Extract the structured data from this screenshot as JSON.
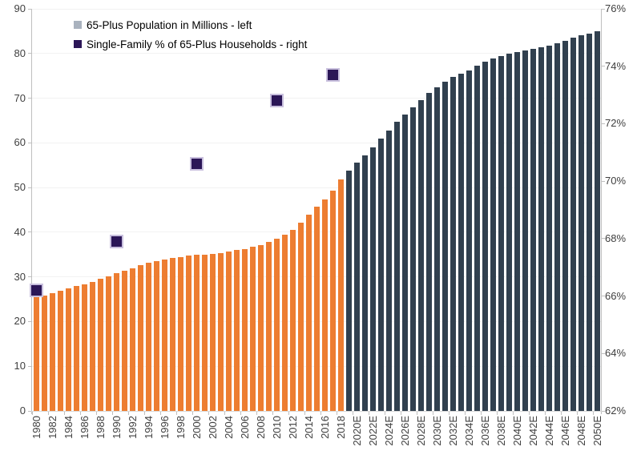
{
  "chart_data": {
    "type": "combo",
    "title": "",
    "legend": [
      {
        "label": "65-Plus Population in Millions - left",
        "marker_color": "#A9B2BE"
      },
      {
        "label": "Single-Family % of 65-Plus Households - right",
        "marker_color": "#2B1657"
      }
    ],
    "categories": [
      1980,
      1981,
      1982,
      1983,
      1984,
      1985,
      1986,
      1987,
      1988,
      1989,
      1990,
      1991,
      1992,
      1993,
      1994,
      1995,
      1996,
      1997,
      1998,
      1999,
      2000,
      2001,
      2002,
      2003,
      2004,
      2005,
      2006,
      2007,
      2008,
      2009,
      2010,
      2011,
      2012,
      2013,
      2014,
      2015,
      2016,
      2017,
      2018,
      2019,
      2020,
      2021,
      2022,
      2023,
      2024,
      2025,
      2026,
      2027,
      2028,
      2029,
      2030,
      2031,
      2032,
      2033,
      2034,
      2035,
      2036,
      2037,
      2038,
      2039,
      2040,
      2041,
      2042,
      2043,
      2044,
      2045,
      2046,
      2047,
      2048,
      2049,
      2050
    ],
    "bar_series": {
      "name": "65-Plus Population in Millions - left",
      "axis": "left",
      "estimate_start_year": 2019,
      "historical_color": "#ED7D31",
      "estimate_color": "#31404F",
      "values": [
        25.4,
        25.9,
        26.4,
        26.9,
        27.4,
        27.9,
        28.4,
        28.9,
        29.5,
        30.1,
        30.8,
        31.4,
        32.0,
        32.6,
        33.1,
        33.5,
        33.9,
        34.2,
        34.5,
        34.7,
        34.9,
        35.0,
        35.2,
        35.4,
        35.7,
        36.0,
        36.3,
        36.7,
        37.2,
        37.8,
        38.6,
        39.4,
        40.5,
        42.2,
        44.0,
        45.8,
        47.3,
        49.3,
        51.8,
        53.8,
        55.6,
        57.2,
        59.0,
        61.0,
        62.8,
        64.7,
        66.4,
        68.0,
        69.5,
        71.1,
        72.5,
        73.7,
        74.7,
        75.5,
        76.2,
        77.3,
        78.2,
        78.9,
        79.5,
        79.9,
        80.4,
        80.6,
        81.0,
        81.4,
        81.7,
        82.3,
        82.9,
        83.5,
        84.1,
        84.5,
        85.0
      ]
    },
    "scatter_series": {
      "name": "Single-Family % of 65-Plus Households - right",
      "axis": "right",
      "color": "#2B1657",
      "border_color": "#C9C0DE",
      "points": [
        {
          "year": 1980,
          "value": 66.2
        },
        {
          "year": 1990,
          "value": 67.9
        },
        {
          "year": 2000,
          "value": 70.6
        },
        {
          "year": 2010,
          "value": 72.8
        },
        {
          "year": 2017,
          "value": 73.7
        }
      ]
    },
    "left_axis": {
      "min": 0,
      "max": 90,
      "step": 10,
      "labels": [
        "0",
        "10",
        "20",
        "30",
        "40",
        "50",
        "60",
        "70",
        "80",
        "90"
      ]
    },
    "right_axis": {
      "min": 62,
      "max": 76,
      "step": 2,
      "labels": [
        "62%",
        "64%",
        "66%",
        "68%",
        "70%",
        "72%",
        "74%",
        "76%"
      ]
    },
    "x_axis": {
      "tick_labels": [
        "1980",
        "1982",
        "1984",
        "1986",
        "1988",
        "1990",
        "1992",
        "1994",
        "1996",
        "1998",
        "2000",
        "2002",
        "2004",
        "2006",
        "2008",
        "2010",
        "2012",
        "2014",
        "2016",
        "2018",
        "2020E",
        "2022E",
        "2024E",
        "2026E",
        "2028E",
        "2030E",
        "2032E",
        "2034E",
        "2036E",
        "2038E",
        "2040E",
        "2042E",
        "2044E",
        "2046E",
        "2048E",
        "2050E"
      ]
    },
    "colors": {
      "gridline": "#F2F2F2",
      "axis_line": "#BFBFBF",
      "x_axis_line": "#D9D9D9",
      "tick_label_color": "#404040"
    },
    "grid": "horizontal",
    "legend_position": "top-left-inside"
  }
}
